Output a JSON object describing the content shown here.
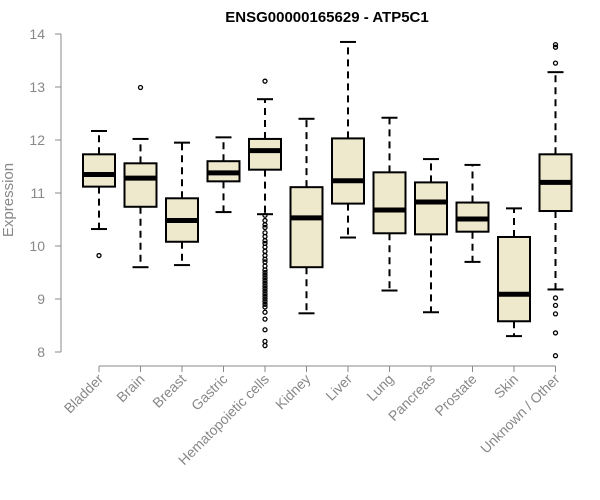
{
  "chart_data": {
    "type": "boxplot",
    "title": "ENSG00000165629 - ATP5C1",
    "xlabel": "",
    "ylabel": "Expression",
    "ylim": [
      8,
      14
    ],
    "yticks": [
      8,
      9,
      10,
      11,
      12,
      13,
      14
    ],
    "grid": false,
    "colors": {
      "box_fill": "#eee8cd",
      "stroke": "#000000",
      "axis": "#888888"
    },
    "categories": [
      "Bladder",
      "Brain",
      "Breast",
      "Gastric",
      "Hematopoietic cells",
      "Kidney",
      "Liver",
      "Lung",
      "Pancreas",
      "Prostate",
      "Skin",
      "Unknown / Other"
    ],
    "boxes": [
      {
        "name": "Bladder",
        "q1": 11.12,
        "median": 11.35,
        "q3": 11.73,
        "whisker_low": 10.32,
        "whisker_high": 12.17,
        "outliers": [
          9.82
        ]
      },
      {
        "name": "Brain",
        "q1": 10.74,
        "median": 11.28,
        "q3": 11.56,
        "whisker_low": 9.6,
        "whisker_high": 12.02,
        "outliers": [
          12.99
        ]
      },
      {
        "name": "Breast",
        "q1": 10.08,
        "median": 10.48,
        "q3": 10.9,
        "whisker_low": 9.64,
        "whisker_high": 11.95,
        "outliers": []
      },
      {
        "name": "Gastric",
        "q1": 11.22,
        "median": 11.38,
        "q3": 11.6,
        "whisker_low": 10.64,
        "whisker_high": 12.05,
        "outliers": []
      },
      {
        "name": "Hematopoietic cells",
        "q1": 11.44,
        "median": 11.8,
        "q3": 12.02,
        "whisker_low": 10.6,
        "whisker_high": 12.77,
        "outliers": [
          13.11,
          10.58,
          10.48,
          10.4,
          10.35,
          10.25,
          10.18,
          10.1,
          10.05,
          9.98,
          9.9,
          9.82,
          9.75,
          9.7,
          9.62,
          9.55,
          9.5,
          9.45,
          9.4,
          9.35,
          9.3,
          9.25,
          9.2,
          9.15,
          9.1,
          9.05,
          9.0,
          8.95,
          8.9,
          8.85,
          8.75,
          8.62,
          8.42,
          8.2,
          8.12
        ]
      },
      {
        "name": "Kidney",
        "q1": 9.6,
        "median": 10.53,
        "q3": 11.11,
        "whisker_low": 8.73,
        "whisker_high": 12.4,
        "outliers": []
      },
      {
        "name": "Liver",
        "q1": 10.8,
        "median": 11.23,
        "q3": 12.03,
        "whisker_low": 10.16,
        "whisker_high": 13.85,
        "outliers": []
      },
      {
        "name": "Lung",
        "q1": 10.24,
        "median": 10.68,
        "q3": 11.39,
        "whisker_low": 9.16,
        "whisker_high": 12.42,
        "outliers": []
      },
      {
        "name": "Pancreas",
        "q1": 10.22,
        "median": 10.83,
        "q3": 11.2,
        "whisker_low": 8.75,
        "whisker_high": 11.64,
        "outliers": []
      },
      {
        "name": "Prostate",
        "q1": 10.27,
        "median": 10.51,
        "q3": 10.82,
        "whisker_low": 9.7,
        "whisker_high": 11.53,
        "outliers": []
      },
      {
        "name": "Skin",
        "q1": 8.58,
        "median": 9.09,
        "q3": 10.17,
        "whisker_low": 8.3,
        "whisker_high": 10.71,
        "outliers": []
      },
      {
        "name": "Unknown / Other",
        "q1": 10.66,
        "median": 11.2,
        "q3": 11.73,
        "whisker_low": 9.18,
        "whisker_high": 13.28,
        "outliers": [
          13.8,
          13.75,
          13.45,
          9.02,
          8.88,
          8.72,
          8.36,
          7.93
        ]
      }
    ]
  }
}
